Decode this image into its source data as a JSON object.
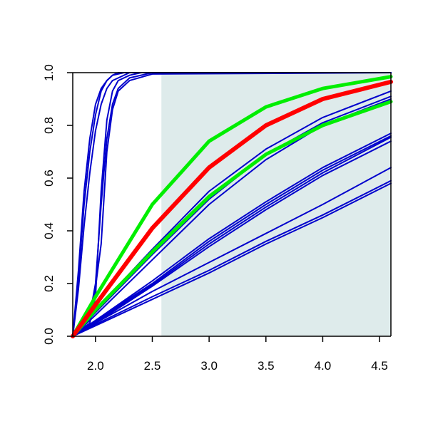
{
  "chart_data": {
    "type": "line",
    "title": "",
    "xlabel": "",
    "ylabel": "",
    "xlim": [
      1.8,
      4.6
    ],
    "ylim": [
      0,
      1
    ],
    "grid": false,
    "legend": "none",
    "x_ticks": [
      2.0,
      2.5,
      3.0,
      3.5,
      4.0,
      4.5
    ],
    "x_tick_labels": [
      "2.0",
      "2.5",
      "3.0",
      "3.5",
      "4.0",
      "4.5"
    ],
    "y_ticks": [
      0.0,
      0.2,
      0.4,
      0.6,
      0.8,
      1.0
    ],
    "y_tick_labels": [
      "0.0",
      "0.2",
      "0.4",
      "0.6",
      "0.8",
      "1.0"
    ],
    "shaded_region": {
      "x_from": 2.58,
      "x_to": 4.6,
      "color": "#deebeb"
    },
    "colors": {
      "blue": "#0000cc",
      "red": "#ff0000",
      "green": "#00ee00",
      "axis": "#000000"
    },
    "series": [
      {
        "color": "blue",
        "width": 2,
        "points": [
          [
            1.8,
            0.0
          ],
          [
            1.85,
            0.25
          ],
          [
            1.9,
            0.55
          ],
          [
            1.95,
            0.75
          ],
          [
            2.0,
            0.88
          ],
          [
            2.05,
            0.94
          ],
          [
            2.1,
            0.97
          ],
          [
            2.15,
            0.99
          ],
          [
            2.2,
            1.0
          ],
          [
            2.6,
            1.0
          ],
          [
            4.6,
            1.0
          ]
        ]
      },
      {
        "color": "blue",
        "width": 2,
        "points": [
          [
            1.8,
            0.0
          ],
          [
            1.85,
            0.22
          ],
          [
            1.9,
            0.5
          ],
          [
            1.95,
            0.7
          ],
          [
            2.0,
            0.84
          ],
          [
            2.05,
            0.93
          ],
          [
            2.1,
            0.97
          ],
          [
            2.15,
            0.99
          ],
          [
            2.25,
            1.0
          ],
          [
            4.6,
            1.0
          ]
        ]
      },
      {
        "color": "blue",
        "width": 2,
        "points": [
          [
            1.8,
            0.0
          ],
          [
            1.85,
            0.18
          ],
          [
            1.9,
            0.42
          ],
          [
            1.95,
            0.62
          ],
          [
            2.0,
            0.78
          ],
          [
            2.05,
            0.88
          ],
          [
            2.1,
            0.94
          ],
          [
            2.15,
            0.97
          ],
          [
            2.3,
            1.0
          ],
          [
            4.6,
            1.0
          ]
        ]
      },
      {
        "color": "blue",
        "width": 2,
        "points": [
          [
            1.8,
            0.0
          ],
          [
            1.95,
            0.05
          ],
          [
            2.0,
            0.15
          ],
          [
            2.05,
            0.55
          ],
          [
            2.1,
            0.82
          ],
          [
            2.15,
            0.93
          ],
          [
            2.2,
            0.97
          ],
          [
            2.3,
            0.99
          ],
          [
            2.4,
            1.0
          ],
          [
            4.6,
            1.0
          ]
        ]
      },
      {
        "color": "blue",
        "width": 2,
        "points": [
          [
            1.8,
            0.0
          ],
          [
            1.95,
            0.08
          ],
          [
            2.0,
            0.2
          ],
          [
            2.05,
            0.5
          ],
          [
            2.1,
            0.75
          ],
          [
            2.15,
            0.88
          ],
          [
            2.2,
            0.94
          ],
          [
            2.3,
            0.98
          ],
          [
            2.5,
            1.0
          ],
          [
            4.6,
            1.0
          ]
        ]
      },
      {
        "color": "blue",
        "width": 2,
        "points": [
          [
            1.8,
            0.0
          ],
          [
            1.98,
            0.12
          ],
          [
            2.05,
            0.35
          ],
          [
            2.1,
            0.7
          ],
          [
            2.15,
            0.86
          ],
          [
            2.2,
            0.93
          ],
          [
            2.3,
            0.97
          ],
          [
            2.5,
            0.995
          ],
          [
            4.6,
            1.0
          ]
        ]
      },
      {
        "color": "blue",
        "width": 2,
        "points": [
          [
            1.8,
            0.0
          ],
          [
            2.0,
            0.1
          ],
          [
            2.5,
            0.33
          ],
          [
            3.0,
            0.55
          ],
          [
            3.5,
            0.71
          ],
          [
            4.0,
            0.83
          ],
          [
            4.6,
            0.93
          ]
        ]
      },
      {
        "color": "blue",
        "width": 2,
        "points": [
          [
            1.8,
            0.0
          ],
          [
            2.0,
            0.09
          ],
          [
            2.5,
            0.31
          ],
          [
            3.0,
            0.52
          ],
          [
            3.5,
            0.69
          ],
          [
            4.0,
            0.81
          ],
          [
            4.6,
            0.91
          ]
        ]
      },
      {
        "color": "blue",
        "width": 2,
        "points": [
          [
            1.8,
            0.0
          ],
          [
            2.0,
            0.08
          ],
          [
            2.5,
            0.29
          ],
          [
            3.0,
            0.5
          ],
          [
            3.5,
            0.67
          ],
          [
            4.0,
            0.8
          ],
          [
            4.6,
            0.9
          ]
        ]
      },
      {
        "color": "blue",
        "width": 2,
        "points": [
          [
            1.8,
            0.0
          ],
          [
            2.0,
            0.06
          ],
          [
            2.5,
            0.21
          ],
          [
            3.0,
            0.37
          ],
          [
            3.5,
            0.51
          ],
          [
            4.0,
            0.64
          ],
          [
            4.6,
            0.77
          ]
        ]
      },
      {
        "color": "blue",
        "width": 2,
        "points": [
          [
            1.8,
            0.0
          ],
          [
            2.0,
            0.06
          ],
          [
            2.5,
            0.2
          ],
          [
            3.0,
            0.36
          ],
          [
            3.5,
            0.5
          ],
          [
            4.0,
            0.63
          ],
          [
            4.6,
            0.76
          ]
        ]
      },
      {
        "color": "blue",
        "width": 2,
        "points": [
          [
            1.8,
            0.0
          ],
          [
            2.0,
            0.055
          ],
          [
            2.5,
            0.195
          ],
          [
            3.0,
            0.35
          ],
          [
            3.5,
            0.49
          ],
          [
            4.0,
            0.62
          ],
          [
            4.6,
            0.755
          ]
        ]
      },
      {
        "color": "blue",
        "width": 2,
        "points": [
          [
            1.8,
            0.0
          ],
          [
            2.0,
            0.05
          ],
          [
            2.5,
            0.19
          ],
          [
            3.0,
            0.34
          ],
          [
            3.5,
            0.48
          ],
          [
            4.0,
            0.61
          ],
          [
            4.6,
            0.74
          ]
        ]
      },
      {
        "color": "blue",
        "width": 2,
        "points": [
          [
            1.8,
            0.0
          ],
          [
            2.0,
            0.05
          ],
          [
            2.5,
            0.17
          ],
          [
            3.0,
            0.28
          ],
          [
            3.5,
            0.39
          ],
          [
            4.0,
            0.5
          ],
          [
            4.6,
            0.64
          ]
        ]
      },
      {
        "color": "blue",
        "width": 2,
        "points": [
          [
            1.8,
            0.0
          ],
          [
            2.0,
            0.045
          ],
          [
            2.5,
            0.15
          ],
          [
            3.0,
            0.25
          ],
          [
            3.5,
            0.36
          ],
          [
            4.0,
            0.46
          ],
          [
            4.6,
            0.59
          ]
        ]
      },
      {
        "color": "blue",
        "width": 2,
        "points": [
          [
            1.8,
            0.0
          ],
          [
            2.0,
            0.04
          ],
          [
            2.5,
            0.14
          ],
          [
            3.0,
            0.24
          ],
          [
            3.5,
            0.35
          ],
          [
            4.0,
            0.45
          ],
          [
            4.6,
            0.58
          ]
        ]
      },
      {
        "color": "green",
        "width": 5,
        "points": [
          [
            1.8,
            0.0
          ],
          [
            2.0,
            0.15
          ],
          [
            2.5,
            0.5
          ],
          [
            3.0,
            0.74
          ],
          [
            3.5,
            0.87
          ],
          [
            4.0,
            0.94
          ],
          [
            4.6,
            0.985
          ]
        ]
      },
      {
        "color": "green",
        "width": 5,
        "points": [
          [
            1.8,
            0.0
          ],
          [
            2.0,
            0.1
          ],
          [
            2.5,
            0.32
          ],
          [
            3.0,
            0.53
          ],
          [
            3.5,
            0.69
          ],
          [
            4.0,
            0.8
          ],
          [
            4.6,
            0.89
          ]
        ]
      },
      {
        "color": "red",
        "width": 6,
        "points": [
          [
            1.8,
            0.0
          ],
          [
            2.0,
            0.12
          ],
          [
            2.5,
            0.41
          ],
          [
            3.0,
            0.64
          ],
          [
            3.5,
            0.8
          ],
          [
            4.0,
            0.9
          ],
          [
            4.6,
            0.965
          ]
        ]
      }
    ]
  }
}
